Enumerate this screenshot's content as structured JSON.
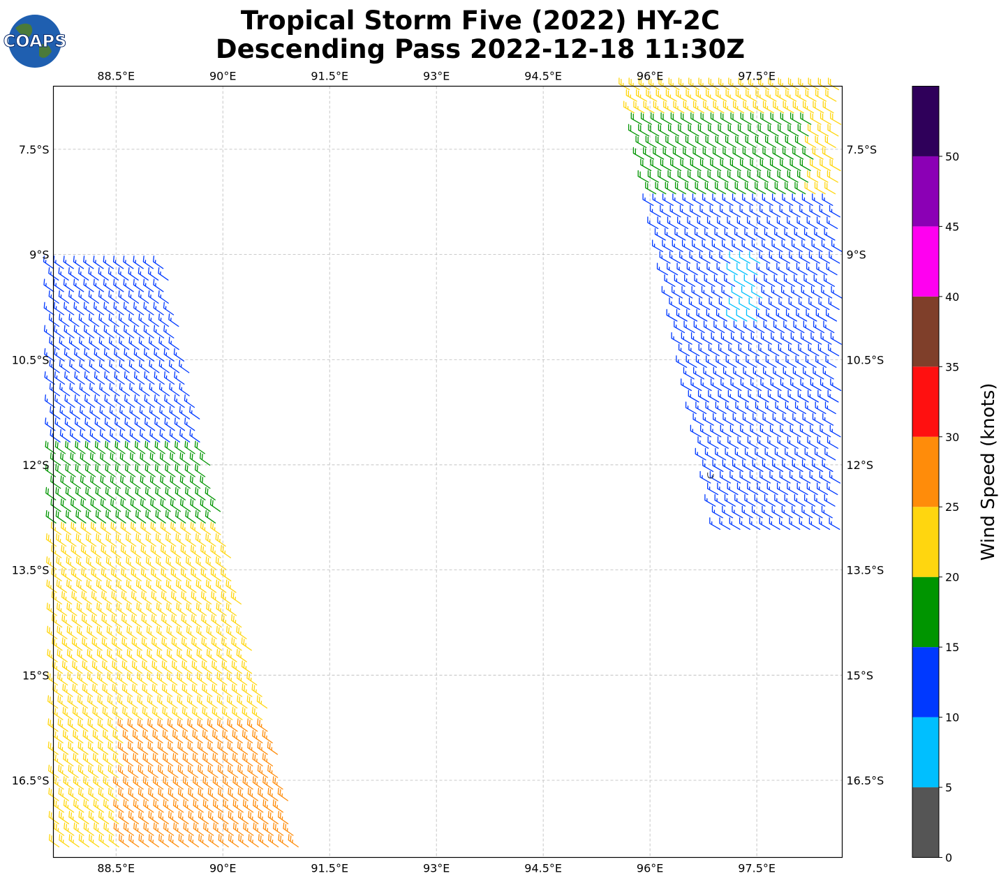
{
  "title": {
    "line1": "Tropical Storm Five (2022) HY-2C",
    "line2": "Descending Pass 2022-12-18 11:30Z"
  },
  "logo": {
    "text": "COAPS",
    "icon": "globe-icon"
  },
  "map": {
    "lon_range": [
      87.62,
      98.7
    ],
    "lat_range": [
      -17.6,
      -6.6
    ],
    "lon_ticks": [
      {
        "value": 88.5,
        "label": "88.5°E"
      },
      {
        "value": 90,
        "label": "90°E"
      },
      {
        "value": 91.5,
        "label": "91.5°E"
      },
      {
        "value": 93,
        "label": "93°E"
      },
      {
        "value": 94.5,
        "label": "94.5°E"
      },
      {
        "value": 96,
        "label": "96°E"
      },
      {
        "value": 97.5,
        "label": "97.5°E"
      }
    ],
    "lat_ticks": [
      {
        "value": -7.5,
        "label": "7.5°S"
      },
      {
        "value": -9,
        "label": "9°S"
      },
      {
        "value": -10.5,
        "label": "10.5°S"
      },
      {
        "value": -12,
        "label": "12°S"
      },
      {
        "value": -13.5,
        "label": "13.5°S"
      },
      {
        "value": -15,
        "label": "15°S"
      },
      {
        "value": -16.5,
        "label": "16.5°S"
      }
    ],
    "gridlines": true,
    "island": {
      "lon": 96.85,
      "lat": -12.15
    }
  },
  "colorbar": {
    "label": "Wind Speed (knots)",
    "bins": [
      {
        "from": 0,
        "to": 5,
        "color": "#555555"
      },
      {
        "from": 5,
        "to": 10,
        "color": "#00bfff"
      },
      {
        "from": 10,
        "to": 15,
        "color": "#0039ff"
      },
      {
        "from": 15,
        "to": 20,
        "color": "#009500"
      },
      {
        "from": 20,
        "to": 25,
        "color": "#ffd60f"
      },
      {
        "from": 25,
        "to": 30,
        "color": "#ff8c0a"
      },
      {
        "from": 30,
        "to": 35,
        "color": "#ff1010"
      },
      {
        "from": 35,
        "to": 40,
        "color": "#7f3f2a"
      },
      {
        "from": 40,
        "to": 45,
        "color": "#ff00f0"
      },
      {
        "from": 45,
        "to": 50,
        "color": "#8b00b5"
      },
      {
        "from": 50,
        "to": 55,
        "color": "#2f005a"
      }
    ],
    "ticks": [
      "0",
      "5",
      "10",
      "15",
      "20",
      "25",
      "30",
      "35",
      "40",
      "45",
      "50"
    ]
  },
  "swaths": [
    {
      "name": "west-swath",
      "top_edge": [
        [
          87.62,
          -9.15
        ],
        [
          89.2,
          -12.5
        ]
      ],
      "bottom_edge": [
        [
          87.7,
          -17.6
        ],
        [
          91.1,
          -17.6
        ]
      ],
      "direction_deg": 305,
      "zones": [
        {
          "lat_from": -9.15,
          "lat_to": -11.8,
          "speed_kt": 13
        },
        {
          "lat_from": -11.8,
          "lat_to": -12.9,
          "speed_kt": 18
        },
        {
          "lat_from": -12.9,
          "lat_to": -17.6,
          "speed_kt": 23
        },
        {
          "lat_from": -15.7,
          "lat_to": -17.6,
          "speed_kt": 27,
          "lon_from": 88.6,
          "lon_to": 91.1
        }
      ]
    },
    {
      "name": "east-swath",
      "top_edge": [
        [
          95.7,
          -6.6
        ],
        [
          98.7,
          -6.6
        ]
      ],
      "bottom_edge": [
        [
          97.0,
          -11.0
        ],
        [
          98.7,
          -13.0
        ]
      ],
      "direction_deg": 300,
      "zones": [
        {
          "lat_from": -6.6,
          "lat_to": -7.0,
          "speed_kt": 23
        },
        {
          "lat_from": -7.0,
          "lat_to": -8.2,
          "speed_kt": 18
        },
        {
          "lat_from": -8.2,
          "lat_to": -13.0,
          "speed_kt": 13
        },
        {
          "lat_from": -9.0,
          "lat_to": -10.0,
          "speed_kt": 8,
          "lon_from": 97.2,
          "lon_to": 97.6
        },
        {
          "lat_from": -6.6,
          "lat_to": -8.2,
          "speed_kt": 22,
          "lon_from": 98.3,
          "lon_to": 98.7
        }
      ]
    }
  ]
}
